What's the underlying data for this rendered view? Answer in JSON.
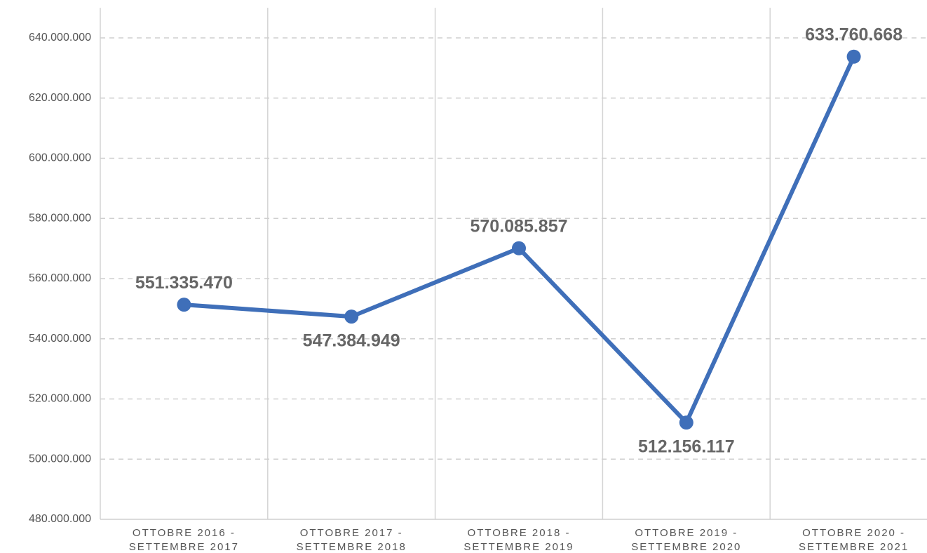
{
  "chart_data": {
    "type": "line",
    "categories": [
      "OTTOBRE 2016 - SETTEMBRE 2017",
      "OTTOBRE 2017 - SETTEMBRE 2018",
      "OTTOBRE 2018 - SETTEMBRE 2019",
      "OTTOBRE 2019 - SETTEMBRE 2020",
      "OTTOBRE 2020 - SETTEMBRE 2021"
    ],
    "series": [
      {
        "color": "#3f6fb9",
        "values": [
          551335470,
          547384949,
          570085857,
          512156117,
          633760668
        ],
        "value_labels": [
          "551.335.470",
          "547.384.949",
          "570.085.857",
          "512.156.117",
          "633.760.668"
        ]
      }
    ],
    "ylim": [
      480000000,
      650000000
    ],
    "yticks": [
      {
        "value": 480000000,
        "label": "480.000.000"
      },
      {
        "value": 500000000,
        "label": "500.000.000"
      },
      {
        "value": 520000000,
        "label": "520.000.000"
      },
      {
        "value": 540000000,
        "label": "540.000.000"
      },
      {
        "value": 560000000,
        "label": "560.000.000"
      },
      {
        "value": 580000000,
        "label": "580.000.000"
      },
      {
        "value": 600000000,
        "label": "600.000.000"
      },
      {
        "value": 620000000,
        "label": "620.000.000"
      },
      {
        "value": 640000000,
        "label": "640.000.000"
      }
    ],
    "grid": true
  }
}
